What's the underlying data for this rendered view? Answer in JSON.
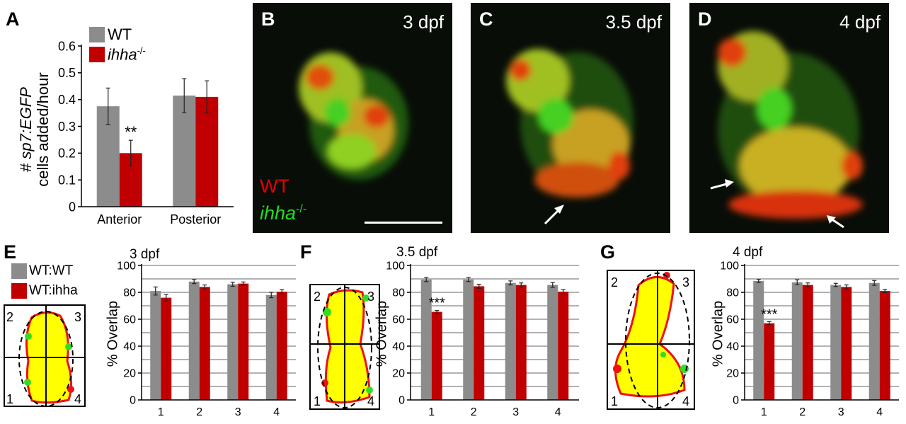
{
  "panel_letters": {
    "a": "A",
    "b": "B",
    "c": "C",
    "d": "D",
    "e": "E",
    "f": "F",
    "g": "G"
  },
  "micrographs": {
    "b": {
      "stage": "3 dpf"
    },
    "c": {
      "stage": "3.5 dpf"
    },
    "d": {
      "stage": "4 dpf"
    },
    "label_wt": "WT",
    "label_ihha": "ihha",
    "label_ihha_sup": "-/-"
  },
  "legend_a": {
    "wt": "WT",
    "mut": "ihha",
    "mut_sup": "-/-"
  },
  "legend_e": {
    "wtwt": "WT:WT",
    "wtihha": "WT:ihha"
  },
  "ylabel_a": {
    "prefix": "# ",
    "gene": "sp7:EGFP",
    "line2": "cells added/hour"
  },
  "overlap_ylabel": "% Overlap",
  "quadrant_numbers": [
    "1",
    "2",
    "3",
    "4"
  ],
  "colors": {
    "wt_gray": "#8c8c8c",
    "mut_red": "#c00000",
    "overlay_yellow": "#ffff00",
    "overlay_red": "#ee1111",
    "overlay_green": "#33dd22"
  },
  "chart_data": [
    {
      "id": "A",
      "type": "bar",
      "categories": [
        "Anterior",
        "Posterior"
      ],
      "series": [
        {
          "name": "WT",
          "values": [
            0.375,
            0.415
          ],
          "errors": [
            0.068,
            0.063
          ]
        },
        {
          "name": "ihha-/-",
          "values": [
            0.2,
            0.41
          ],
          "errors": [
            0.048,
            0.06
          ]
        }
      ],
      "ylim": [
        0,
        0.6
      ],
      "yticks": [
        "0",
        "0.1",
        "0.2",
        "0.3",
        "0.4",
        "0.5",
        "0.6"
      ],
      "annotations": [
        {
          "category": 0,
          "series": 1,
          "text": "**"
        }
      ]
    },
    {
      "id": "E",
      "type": "bar",
      "title": "3 dpf",
      "categories": [
        "1",
        "2",
        "3",
        "4"
      ],
      "series": [
        {
          "name": "WT:WT",
          "values": [
            81,
            88,
            86,
            78
          ],
          "errors": [
            3,
            1.5,
            1.5,
            2
          ]
        },
        {
          "name": "WT:ihha",
          "values": [
            76,
            84,
            86.5,
            80.5
          ],
          "errors": [
            2.5,
            1.5,
            1.2,
            1.5
          ]
        }
      ],
      "ylim": [
        0,
        100
      ],
      "yticks": [
        "0",
        "20",
        "40",
        "60",
        "80",
        "100"
      ],
      "annotations": []
    },
    {
      "id": "F",
      "type": "bar",
      "title": "3.5 dpf",
      "categories": [
        "1",
        "2",
        "3",
        "4"
      ],
      "series": [
        {
          "name": "WT:WT",
          "values": [
            89.5,
            89.5,
            87,
            85.5
          ],
          "errors": [
            1.5,
            1.5,
            1.5,
            1.8
          ]
        },
        {
          "name": "WT:ihha",
          "values": [
            65.5,
            84.5,
            85.5,
            80.5
          ],
          "errors": [
            1,
            1.5,
            1.5,
            1.5
          ]
        }
      ],
      "ylim": [
        0,
        100
      ],
      "yticks": [
        "0",
        "20",
        "40",
        "60",
        "80",
        "100"
      ],
      "annotations": [
        {
          "category": 0,
          "series": 1,
          "text": "***"
        }
      ]
    },
    {
      "id": "G",
      "type": "bar",
      "title": "4 dpf",
      "categories": [
        "1",
        "2",
        "3",
        "4"
      ],
      "series": [
        {
          "name": "WT:WT",
          "values": [
            88.5,
            87.5,
            85.5,
            87
          ],
          "errors": [
            1.2,
            1.8,
            1.2,
            1.8
          ]
        },
        {
          "name": "WT:ihha",
          "values": [
            57,
            85.5,
            84,
            81
          ],
          "errors": [
            1.2,
            1.5,
            1.5,
            1.2
          ]
        }
      ],
      "ylim": [
        0,
        100
      ],
      "yticks": [
        "0",
        "20",
        "40",
        "60",
        "80",
        "100"
      ],
      "annotations": [
        {
          "category": 0,
          "series": 1,
          "text": "***"
        }
      ]
    }
  ]
}
